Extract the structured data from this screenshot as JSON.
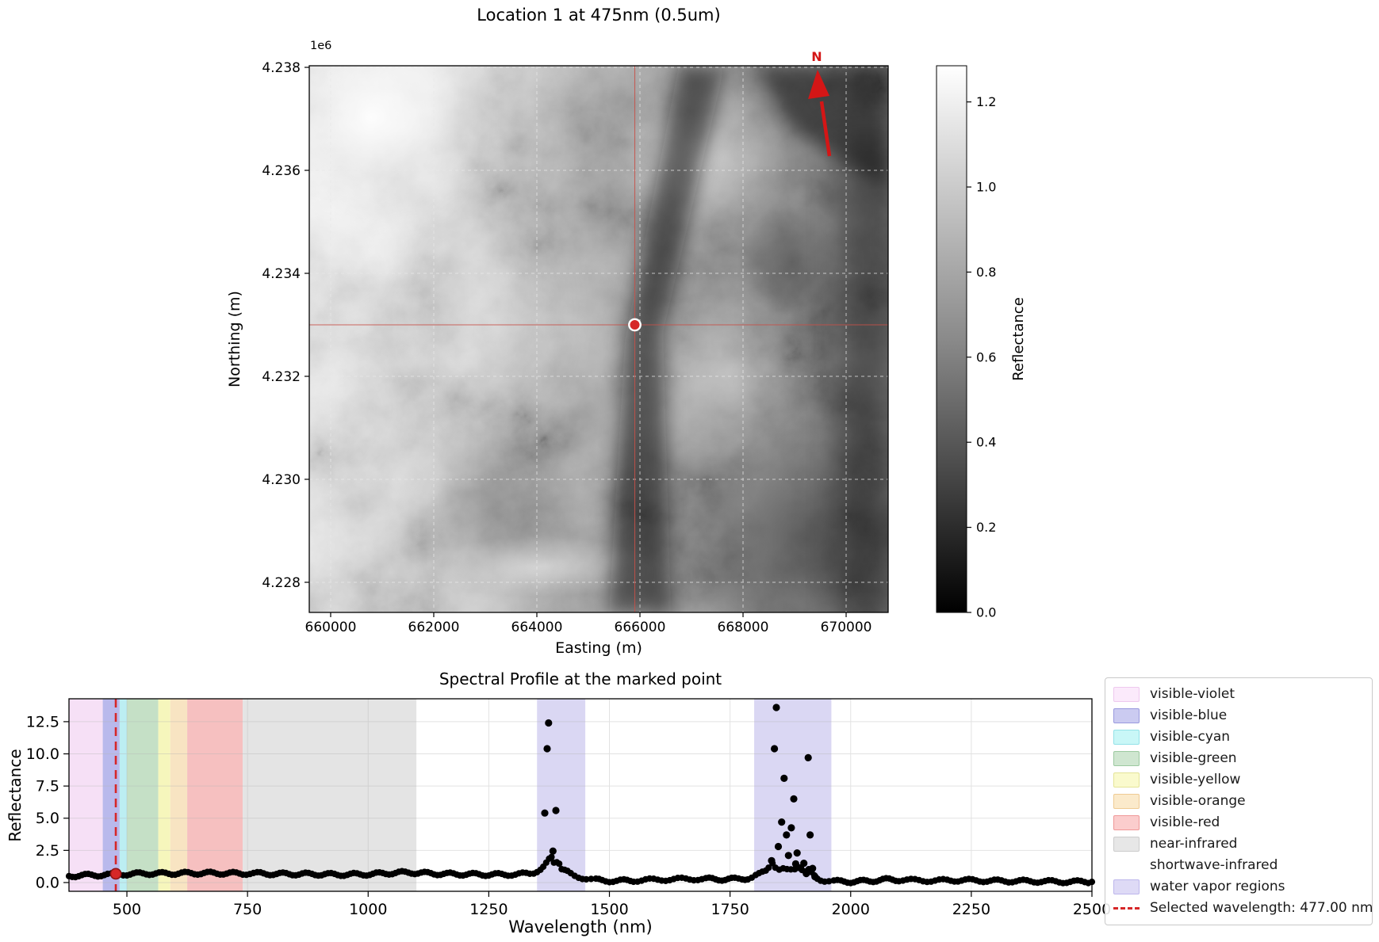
{
  "map_figure": {
    "title": "Location 1 at 475nm (0.5um)",
    "offset_text": "1e6",
    "xlabel": "Easting (m)",
    "ylabel": "Northing (m)",
    "x_tick_labels": [
      "660000",
      "662000",
      "664000",
      "666000",
      "668000",
      "670000"
    ],
    "y_tick_labels": [
      "4.238",
      "4.236",
      "4.234",
      "4.232",
      "4.230",
      "4.228"
    ],
    "north_label": "N",
    "colorbar": {
      "label": "Reflectance",
      "tick_labels": [
        "0.0",
        "0.2",
        "0.4",
        "0.6",
        "0.8",
        "1.0",
        "1.2"
      ]
    }
  },
  "spectral_figure": {
    "title": "Spectral Profile at the marked point",
    "xlabel": "Wavelength (nm)",
    "ylabel": "Reflectance",
    "x_tick_labels": [
      "500",
      "750",
      "1000",
      "1250",
      "1500",
      "1750",
      "2000",
      "2250",
      "2500"
    ],
    "y_tick_labels": [
      "0.0",
      "2.5",
      "5.0",
      "7.5",
      "10.0",
      "12.5"
    ],
    "legend": {
      "items": [
        {
          "label": "visible-violet",
          "swatch": "patch",
          "fill": "#fbeafb",
          "edge": "#eec9ee"
        },
        {
          "label": "visible-blue",
          "swatch": "patch",
          "fill": "#cbcbf1",
          "edge": "#9a9ade"
        },
        {
          "label": "visible-cyan",
          "swatch": "patch",
          "fill": "#c9f7f7",
          "edge": "#94e2e8"
        },
        {
          "label": "visible-green",
          "swatch": "patch",
          "fill": "#cfe6d0",
          "edge": "#9cc9a0"
        },
        {
          "label": "visible-yellow",
          "swatch": "patch",
          "fill": "#fafacd",
          "edge": "#e4e498"
        },
        {
          "label": "visible-orange",
          "swatch": "patch",
          "fill": "#fbeacb",
          "edge": "#efcb93"
        },
        {
          "label": "visible-red",
          "swatch": "patch",
          "fill": "#fbcdcd",
          "edge": "#ef9898"
        },
        {
          "label": "near-infrared",
          "swatch": "patch",
          "fill": "#e7e7e7",
          "edge": "#cccccc"
        },
        {
          "label": "shortwave-infrared",
          "swatch": "none",
          "fill": "transparent",
          "edge": "transparent"
        },
        {
          "label": "water vapor regions",
          "swatch": "patch",
          "fill": "#dedaf6",
          "edge": "#bdb6ec"
        },
        {
          "label": "Selected wavelength: 477.00 nm",
          "swatch": "dashed-line",
          "fill": "#d62728",
          "edge": "#d62728"
        }
      ]
    }
  },
  "chart_data": [
    {
      "type": "heatmap",
      "title": "Location 1 at 475nm (0.5um)",
      "xlabel": "Easting (m)",
      "ylabel": "Northing (m)",
      "xlim": [
        659585,
        670815
      ],
      "ylim": [
        4227415,
        4238031
      ],
      "x_ticks": [
        660000,
        662000,
        664000,
        666000,
        668000,
        670000
      ],
      "y_ticks": [
        4238000,
        4236000,
        4234000,
        4232000,
        4230000,
        4228000
      ],
      "grid": true,
      "marked_point": {
        "easting": 665900,
        "northing": 4233000
      },
      "colorbar": {
        "label": "Reflectance",
        "vmin": 0.0,
        "vmax": 1.285,
        "ticks": [
          0.0,
          0.2,
          0.4,
          0.6,
          0.8,
          1.0,
          1.2
        ]
      },
      "crosshair_color": "#c85048",
      "marker_fill": "#d62728",
      "north_arrow_color": "#d41616"
    },
    {
      "type": "scatter",
      "title": "Spectral Profile at the marked point",
      "xlabel": "Wavelength (nm)",
      "ylabel": "Reflectance",
      "xlim": [
        380,
        2500
      ],
      "ylim": [
        -0.68,
        14.28
      ],
      "x_ticks": [
        500,
        750,
        1000,
        1250,
        1500,
        1750,
        2000,
        2250,
        2500
      ],
      "y_ticks": [
        0.0,
        2.5,
        5.0,
        7.5,
        10.0,
        12.5
      ],
      "grid": true,
      "point_color": "#000000",
      "selected_wavelength_nm": 477.0,
      "selected_point": {
        "wavelength": 477,
        "reflectance": 0.68
      },
      "selected_line_color": "#d62728",
      "bands": [
        {
          "name": "visible-violet",
          "from": 380,
          "to": 450,
          "color": "#f6e0f6"
        },
        {
          "name": "visible-blue",
          "from": 450,
          "to": 485,
          "color": "#b9b9ec"
        },
        {
          "name": "visible-cyan",
          "from": 485,
          "to": 500,
          "color": "#bceef2"
        },
        {
          "name": "visible-green",
          "from": 500,
          "to": 565,
          "color": "#c5e0c6"
        },
        {
          "name": "visible-yellow",
          "from": 565,
          "to": 590,
          "color": "#f6f6bc"
        },
        {
          "name": "visible-orange",
          "from": 590,
          "to": 625,
          "color": "#f8e4c2"
        },
        {
          "name": "visible-red",
          "from": 625,
          "to": 740,
          "color": "#f6c0c0"
        },
        {
          "name": "near-infrared",
          "from": 740,
          "to": 1100,
          "color": "#e4e4e4"
        },
        {
          "name": "water-vapor-1",
          "from": 1350,
          "to": 1450,
          "color": "#dad7f3"
        },
        {
          "name": "water-vapor-2",
          "from": 1800,
          "to": 1960,
          "color": "#dad7f3"
        }
      ],
      "baseline": [
        [
          380,
          0.5
        ],
        [
          400,
          0.55
        ],
        [
          420,
          0.57
        ],
        [
          440,
          0.58
        ],
        [
          460,
          0.6
        ],
        [
          477,
          0.62
        ],
        [
          500,
          0.66
        ],
        [
          520,
          0.68
        ],
        [
          540,
          0.7
        ],
        [
          560,
          0.7
        ],
        [
          580,
          0.7
        ],
        [
          600,
          0.71
        ],
        [
          620,
          0.72
        ],
        [
          640,
          0.72
        ],
        [
          660,
          0.73
        ],
        [
          680,
          0.73
        ],
        [
          700,
          0.72
        ],
        [
          720,
          0.71
        ],
        [
          740,
          0.7
        ],
        [
          755,
          0.72
        ],
        [
          770,
          0.7
        ],
        [
          790,
          0.68
        ],
        [
          810,
          0.67
        ],
        [
          830,
          0.67
        ],
        [
          850,
          0.66
        ],
        [
          870,
          0.66
        ],
        [
          890,
          0.65
        ],
        [
          910,
          0.64
        ],
        [
          930,
          0.62
        ],
        [
          950,
          0.62
        ],
        [
          970,
          0.63
        ],
        [
          990,
          0.64
        ],
        [
          1010,
          0.66
        ],
        [
          1030,
          0.7
        ],
        [
          1050,
          0.74
        ],
        [
          1070,
          0.77
        ],
        [
          1090,
          0.78
        ],
        [
          1110,
          0.74
        ],
        [
          1130,
          0.7
        ],
        [
          1150,
          0.68
        ],
        [
          1170,
          0.66
        ],
        [
          1190,
          0.65
        ],
        [
          1210,
          0.64
        ],
        [
          1230,
          0.63
        ],
        [
          1250,
          0.62
        ],
        [
          1270,
          0.62
        ],
        [
          1290,
          0.63
        ],
        [
          1305,
          0.64
        ],
        [
          1320,
          0.66
        ],
        [
          1335,
          0.68
        ],
        [
          1343,
          0.78
        ],
        [
          1350,
          0.92
        ],
        [
          1357,
          1.05
        ],
        [
          1363,
          1.2
        ],
        [
          1369,
          1.45
        ],
        [
          1375,
          1.75
        ],
        [
          1380,
          1.95
        ],
        [
          1385,
          1.6
        ],
        [
          1391,
          1.68
        ],
        [
          1396,
          1.55
        ],
        [
          1401,
          1.05
        ],
        [
          1407,
          0.92
        ],
        [
          1413,
          0.8
        ],
        [
          1420,
          0.66
        ],
        [
          1428,
          0.54
        ],
        [
          1436,
          0.46
        ],
        [
          1444,
          0.38
        ],
        [
          1452,
          0.3
        ],
        [
          1462,
          0.24
        ],
        [
          1472,
          0.2
        ],
        [
          1485,
          0.17
        ],
        [
          1500,
          0.14
        ],
        [
          1515,
          0.13
        ],
        [
          1530,
          0.14
        ],
        [
          1550,
          0.16
        ],
        [
          1575,
          0.19
        ],
        [
          1600,
          0.22
        ],
        [
          1625,
          0.25
        ],
        [
          1650,
          0.27
        ],
        [
          1675,
          0.28
        ],
        [
          1700,
          0.28
        ],
        [
          1720,
          0.26
        ],
        [
          1740,
          0.25
        ],
        [
          1760,
          0.27
        ],
        [
          1775,
          0.3
        ],
        [
          1787,
          0.33
        ],
        [
          1795,
          0.38
        ],
        [
          1803,
          0.5
        ],
        [
          1810,
          0.62
        ],
        [
          1817,
          0.78
        ],
        [
          1824,
          0.95
        ],
        [
          1830,
          1.25
        ],
        [
          1838,
          1.6
        ],
        [
          1844,
          1.2
        ],
        [
          1852,
          0.95
        ],
        [
          1860,
          1.0
        ],
        [
          1868,
          0.95
        ],
        [
          1876,
          1.0
        ],
        [
          1884,
          1.1
        ],
        [
          1892,
          1.25
        ],
        [
          1899,
          1.05
        ],
        [
          1906,
          0.85
        ],
        [
          1913,
          0.95
        ],
        [
          1919,
          0.7
        ],
        [
          1925,
          0.5
        ],
        [
          1931,
          0.33
        ],
        [
          1938,
          0.24
        ],
        [
          1946,
          0.17
        ],
        [
          1955,
          0.13
        ],
        [
          1965,
          0.1
        ],
        [
          1980,
          0.08
        ],
        [
          2000,
          0.07
        ],
        [
          2020,
          0.09
        ],
        [
          2040,
          0.13
        ],
        [
          2060,
          0.19
        ],
        [
          2080,
          0.24
        ],
        [
          2100,
          0.21
        ],
        [
          2125,
          0.18
        ],
        [
          2150,
          0.16
        ],
        [
          2175,
          0.15
        ],
        [
          2200,
          0.16
        ],
        [
          2230,
          0.19
        ],
        [
          2260,
          0.16
        ],
        [
          2290,
          0.13
        ],
        [
          2320,
          0.12
        ],
        [
          2350,
          0.11
        ],
        [
          2380,
          0.1
        ],
        [
          2410,
          0.08
        ],
        [
          2440,
          0.06
        ],
        [
          2470,
          0.06
        ],
        [
          2500,
          0.05
        ]
      ],
      "spikes": [
        [
          1366,
          5.4
        ],
        [
          1371,
          10.4
        ],
        [
          1374,
          12.4
        ],
        [
          1383,
          2.45
        ],
        [
          1389,
          5.6
        ],
        [
          1836,
          1.7
        ],
        [
          1842,
          10.4
        ],
        [
          1846,
          13.6
        ],
        [
          1850,
          2.8
        ],
        [
          1857,
          4.7
        ],
        [
          1862,
          8.1
        ],
        [
          1867,
          3.7
        ],
        [
          1871,
          2.1
        ],
        [
          1877,
          4.25
        ],
        [
          1882,
          6.5
        ],
        [
          1886,
          1.45
        ],
        [
          1889,
          2.3
        ],
        [
          1896,
          1.15
        ],
        [
          1903,
          1.5
        ],
        [
          1908,
          0.7
        ],
        [
          1912,
          9.7
        ],
        [
          1916,
          3.7
        ],
        [
          1921,
          1.1
        ],
        [
          1926,
          0.45
        ]
      ],
      "legend_position": "outside-right"
    }
  ]
}
